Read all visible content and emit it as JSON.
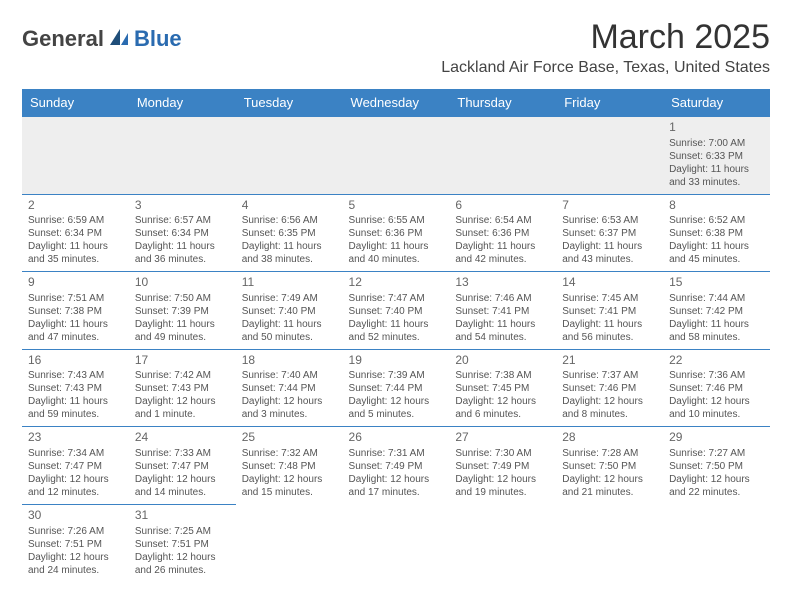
{
  "header": {
    "logo_general": "General",
    "logo_blue": "Blue",
    "month_title": "March 2025",
    "location": "Lackland Air Force Base, Texas, United States"
  },
  "colors": {
    "header_bg": "#3b82c4",
    "header_text": "#ffffff",
    "border": "#3b82c4",
    "empty_bg": "#eeeeee",
    "logo_accent": "#2a6bb0",
    "text": "#555555"
  },
  "day_headers": [
    "Sunday",
    "Monday",
    "Tuesday",
    "Wednesday",
    "Thursday",
    "Friday",
    "Saturday"
  ],
  "weeks": [
    [
      null,
      null,
      null,
      null,
      null,
      null,
      {
        "n": "1",
        "sr": "Sunrise: 7:00 AM",
        "ss": "Sunset: 6:33 PM",
        "dl": "Daylight: 11 hours and 33 minutes."
      }
    ],
    [
      {
        "n": "2",
        "sr": "Sunrise: 6:59 AM",
        "ss": "Sunset: 6:34 PM",
        "dl": "Daylight: 11 hours and 35 minutes."
      },
      {
        "n": "3",
        "sr": "Sunrise: 6:57 AM",
        "ss": "Sunset: 6:34 PM",
        "dl": "Daylight: 11 hours and 36 minutes."
      },
      {
        "n": "4",
        "sr": "Sunrise: 6:56 AM",
        "ss": "Sunset: 6:35 PM",
        "dl": "Daylight: 11 hours and 38 minutes."
      },
      {
        "n": "5",
        "sr": "Sunrise: 6:55 AM",
        "ss": "Sunset: 6:36 PM",
        "dl": "Daylight: 11 hours and 40 minutes."
      },
      {
        "n": "6",
        "sr": "Sunrise: 6:54 AM",
        "ss": "Sunset: 6:36 PM",
        "dl": "Daylight: 11 hours and 42 minutes."
      },
      {
        "n": "7",
        "sr": "Sunrise: 6:53 AM",
        "ss": "Sunset: 6:37 PM",
        "dl": "Daylight: 11 hours and 43 minutes."
      },
      {
        "n": "8",
        "sr": "Sunrise: 6:52 AM",
        "ss": "Sunset: 6:38 PM",
        "dl": "Daylight: 11 hours and 45 minutes."
      }
    ],
    [
      {
        "n": "9",
        "sr": "Sunrise: 7:51 AM",
        "ss": "Sunset: 7:38 PM",
        "dl": "Daylight: 11 hours and 47 minutes."
      },
      {
        "n": "10",
        "sr": "Sunrise: 7:50 AM",
        "ss": "Sunset: 7:39 PM",
        "dl": "Daylight: 11 hours and 49 minutes."
      },
      {
        "n": "11",
        "sr": "Sunrise: 7:49 AM",
        "ss": "Sunset: 7:40 PM",
        "dl": "Daylight: 11 hours and 50 minutes."
      },
      {
        "n": "12",
        "sr": "Sunrise: 7:47 AM",
        "ss": "Sunset: 7:40 PM",
        "dl": "Daylight: 11 hours and 52 minutes."
      },
      {
        "n": "13",
        "sr": "Sunrise: 7:46 AM",
        "ss": "Sunset: 7:41 PM",
        "dl": "Daylight: 11 hours and 54 minutes."
      },
      {
        "n": "14",
        "sr": "Sunrise: 7:45 AM",
        "ss": "Sunset: 7:41 PM",
        "dl": "Daylight: 11 hours and 56 minutes."
      },
      {
        "n": "15",
        "sr": "Sunrise: 7:44 AM",
        "ss": "Sunset: 7:42 PM",
        "dl": "Daylight: 11 hours and 58 minutes."
      }
    ],
    [
      {
        "n": "16",
        "sr": "Sunrise: 7:43 AM",
        "ss": "Sunset: 7:43 PM",
        "dl": "Daylight: 11 hours and 59 minutes."
      },
      {
        "n": "17",
        "sr": "Sunrise: 7:42 AM",
        "ss": "Sunset: 7:43 PM",
        "dl": "Daylight: 12 hours and 1 minute."
      },
      {
        "n": "18",
        "sr": "Sunrise: 7:40 AM",
        "ss": "Sunset: 7:44 PM",
        "dl": "Daylight: 12 hours and 3 minutes."
      },
      {
        "n": "19",
        "sr": "Sunrise: 7:39 AM",
        "ss": "Sunset: 7:44 PM",
        "dl": "Daylight: 12 hours and 5 minutes."
      },
      {
        "n": "20",
        "sr": "Sunrise: 7:38 AM",
        "ss": "Sunset: 7:45 PM",
        "dl": "Daylight: 12 hours and 6 minutes."
      },
      {
        "n": "21",
        "sr": "Sunrise: 7:37 AM",
        "ss": "Sunset: 7:46 PM",
        "dl": "Daylight: 12 hours and 8 minutes."
      },
      {
        "n": "22",
        "sr": "Sunrise: 7:36 AM",
        "ss": "Sunset: 7:46 PM",
        "dl": "Daylight: 12 hours and 10 minutes."
      }
    ],
    [
      {
        "n": "23",
        "sr": "Sunrise: 7:34 AM",
        "ss": "Sunset: 7:47 PM",
        "dl": "Daylight: 12 hours and 12 minutes."
      },
      {
        "n": "24",
        "sr": "Sunrise: 7:33 AM",
        "ss": "Sunset: 7:47 PM",
        "dl": "Daylight: 12 hours and 14 minutes."
      },
      {
        "n": "25",
        "sr": "Sunrise: 7:32 AM",
        "ss": "Sunset: 7:48 PM",
        "dl": "Daylight: 12 hours and 15 minutes."
      },
      {
        "n": "26",
        "sr": "Sunrise: 7:31 AM",
        "ss": "Sunset: 7:49 PM",
        "dl": "Daylight: 12 hours and 17 minutes."
      },
      {
        "n": "27",
        "sr": "Sunrise: 7:30 AM",
        "ss": "Sunset: 7:49 PM",
        "dl": "Daylight: 12 hours and 19 minutes."
      },
      {
        "n": "28",
        "sr": "Sunrise: 7:28 AM",
        "ss": "Sunset: 7:50 PM",
        "dl": "Daylight: 12 hours and 21 minutes."
      },
      {
        "n": "29",
        "sr": "Sunrise: 7:27 AM",
        "ss": "Sunset: 7:50 PM",
        "dl": "Daylight: 12 hours and 22 minutes."
      }
    ],
    [
      {
        "n": "30",
        "sr": "Sunrise: 7:26 AM",
        "ss": "Sunset: 7:51 PM",
        "dl": "Daylight: 12 hours and 24 minutes."
      },
      {
        "n": "31",
        "sr": "Sunrise: 7:25 AM",
        "ss": "Sunset: 7:51 PM",
        "dl": "Daylight: 12 hours and 26 minutes."
      },
      null,
      null,
      null,
      null,
      null
    ]
  ]
}
